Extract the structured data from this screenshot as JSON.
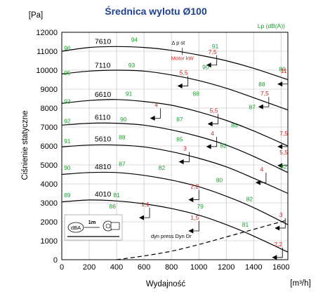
{
  "title": "Średnica wylotu Ø100",
  "colors": {
    "title": "#1f3f8f",
    "noise": "#1e9a2e",
    "power": "#d21e1e",
    "curve": "#000000",
    "grid": "#bbbbbb"
  },
  "chart_data": {
    "type": "line",
    "title": "Średnica wylotu Ø100",
    "xlabel": "Wydajność",
    "xunit": "[m³/h]",
    "ylabel": "Ciśnienie statyczne",
    "yunit": "[Pa]",
    "noise_unit": "Lp (dB(A))",
    "xlim": [
      0,
      1650
    ],
    "ylim": [
      0,
      12000
    ],
    "xticks": [
      0,
      200,
      400,
      600,
      800,
      1000,
      1200,
      1400,
      1600
    ],
    "yticks": [
      0,
      1000,
      2000,
      3000,
      4000,
      5000,
      6000,
      7000,
      8000,
      9000,
      10000,
      11000,
      12000
    ],
    "grid": true,
    "labels": {
      "pressure": "Δ p st",
      "motor": "Motor kW",
      "dynamic": "dyn press Dyn Dr",
      "device": "dBA",
      "distance": "1m"
    },
    "series": [
      {
        "name": "7610",
        "x": [
          0,
          200,
          400,
          600,
          800,
          1000,
          1200,
          1400,
          1650
        ],
        "y": [
          11000,
          11200,
          11250,
          11200,
          11050,
          10800,
          10500,
          10100,
          9500
        ],
        "noise": [
          {
            "x": 40,
            "y": 11050,
            "v": "96"
          },
          {
            "x": 530,
            "y": 11500,
            "v": "94"
          },
          {
            "x": 1120,
            "y": 11150,
            "v": "91"
          },
          {
            "x": 1610,
            "y": 9950,
            "v": "89"
          }
        ],
        "power": [
          {
            "x": 1100,
            "y": 10750,
            "v": "7,5"
          },
          {
            "x": 1620,
            "y": 9750,
            "v": "11"
          }
        ]
      },
      {
        "name": "7110",
        "x": [
          0,
          200,
          400,
          600,
          800,
          1000,
          1200,
          1400,
          1650
        ],
        "y": [
          9800,
          9950,
          10000,
          9950,
          9750,
          9450,
          9050,
          8550,
          7900
        ],
        "noise": [
          {
            "x": 40,
            "y": 9750,
            "v": "95"
          },
          {
            "x": 510,
            "y": 10150,
            "v": "93"
          },
          {
            "x": 1050,
            "y": 10050,
            "v": "90"
          },
          {
            "x": 1460,
            "y": 9150,
            "v": "88"
          }
        ],
        "power": [
          {
            "x": 890,
            "y": 9650,
            "v": "5,5"
          },
          {
            "x": 1480,
            "y": 8550,
            "v": "7,5"
          }
        ]
      },
      {
        "name": "6610",
        "x": [
          0,
          200,
          400,
          600,
          800,
          1000,
          1200,
          1400,
          1650
        ],
        "y": [
          8250,
          8400,
          8450,
          8350,
          8150,
          7800,
          7350,
          6800,
          6000
        ],
        "noise": [
          {
            "x": 40,
            "y": 8250,
            "v": "93"
          },
          {
            "x": 490,
            "y": 8650,
            "v": "91"
          },
          {
            "x": 980,
            "y": 8650,
            "v": "88"
          },
          {
            "x": 1390,
            "y": 7950,
            "v": "87"
          }
        ],
        "power": [
          {
            "x": 690,
            "y": 7950,
            "v": "4"
          },
          {
            "x": 1110,
            "y": 7650,
            "v": "5,5"
          }
        ]
      },
      {
        "name": "6110",
        "x": [
          0,
          200,
          400,
          600,
          800,
          1000,
          1200,
          1400,
          1650
        ],
        "y": [
          7100,
          7200,
          7200,
          7100,
          6850,
          6500,
          6050,
          5450,
          4600
        ],
        "noise": [
          {
            "x": 40,
            "y": 7200,
            "v": "92"
          },
          {
            "x": 450,
            "y": 7300,
            "v": "90"
          },
          {
            "x": 860,
            "y": 7300,
            "v": "87"
          },
          {
            "x": 1260,
            "y": 6980,
            "v": "86"
          }
        ],
        "power": [
          {
            "x": 1100,
            "y": 6450,
            "v": "4"
          },
          {
            "x": 1620,
            "y": 6450,
            "v": "7,5"
          }
        ]
      },
      {
        "name": "5610",
        "x": [
          0,
          200,
          400,
          600,
          800,
          1000,
          1200,
          1400,
          1650
        ],
        "y": [
          5950,
          6050,
          6050,
          5950,
          5700,
          5350,
          4900,
          4300,
          3500
        ],
        "noise": [
          {
            "x": 40,
            "y": 6150,
            "v": "91"
          },
          {
            "x": 440,
            "y": 6350,
            "v": "88"
          },
          {
            "x": 860,
            "y": 6250,
            "v": "85"
          },
          {
            "x": 1180,
            "y": 5900,
            "v": "82"
          }
        ],
        "power": [
          {
            "x": 900,
            "y": 5650,
            "v": "3"
          },
          {
            "x": 1620,
            "y": 5450,
            "v": "5,5"
          }
        ]
      },
      {
        "name": "4810",
        "x": [
          0,
          200,
          400,
          600,
          800,
          1000,
          1200,
          1400,
          1650
        ],
        "y": [
          4500,
          4600,
          4600,
          4450,
          4200,
          3850,
          3350,
          2750,
          1850
        ],
        "noise": [
          {
            "x": 40,
            "y": 4750,
            "v": "90"
          },
          {
            "x": 440,
            "y": 4950,
            "v": "87"
          },
          {
            "x": 730,
            "y": 4750,
            "v": "82"
          },
          {
            "x": 1150,
            "y": 4100,
            "v": "80"
          },
          {
            "x": 1620,
            "y": 4800,
            "v": "82"
          }
        ],
        "power": [
          {
            "x": 1460,
            "y": 4550,
            "v": "4"
          }
        ]
      },
      {
        "name": "4010",
        "x": [
          0,
          200,
          400,
          600,
          800,
          1000,
          1200,
          1400,
          1650
        ],
        "y": [
          3050,
          3150,
          3100,
          2950,
          2700,
          2350,
          1850,
          1250,
          400
        ],
        "noise": [
          {
            "x": 40,
            "y": 3300,
            "v": "89"
          },
          {
            "x": 400,
            "y": 3300,
            "v": "81"
          },
          {
            "x": 370,
            "y": 2700,
            "v": "86"
          },
          {
            "x": 1010,
            "y": 2700,
            "v": "79"
          },
          {
            "x": 1370,
            "y": 3100,
            "v": "82"
          },
          {
            "x": 1340,
            "y": 1750,
            "v": "81"
          }
        ],
        "power": [
          {
            "x": 970,
            "y": 3650,
            "v": "2,2"
          },
          {
            "x": 610,
            "y": 2700,
            "v": "1,1"
          },
          {
            "x": 970,
            "y": 2000,
            "v": "1,5"
          },
          {
            "x": 1600,
            "y": 2150,
            "v": "3"
          },
          {
            "x": 1580,
            "y": 600,
            "v": "2,2"
          }
        ]
      }
    ],
    "dynamic_pressure": {
      "name": "dyn press Dyn Dr",
      "x": [
        400,
        600,
        800,
        1000,
        1200,
        1400,
        1650
      ],
      "y": [
        0,
        200,
        450,
        800,
        1200,
        1600,
        2100
      ]
    }
  }
}
